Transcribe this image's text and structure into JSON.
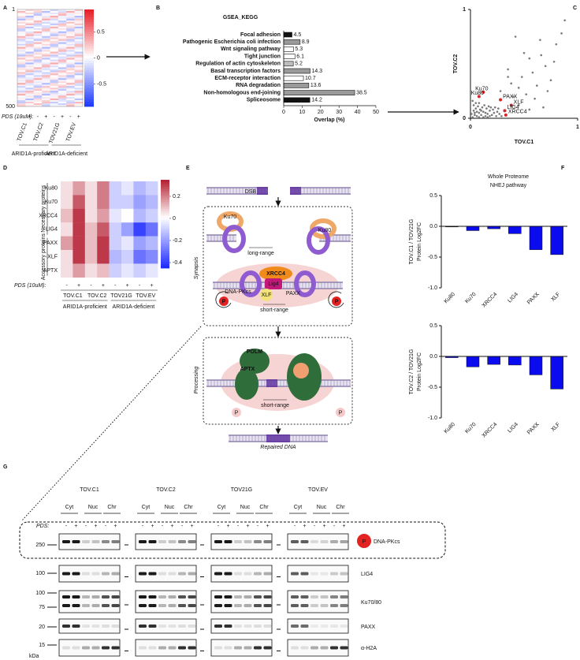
{
  "panel_labels": [
    "A",
    "B",
    "C",
    "D",
    "E",
    "F",
    "G"
  ],
  "panel_a": {
    "rows": [
      1,
      500
    ],
    "zlim": [
      -0.93,
      0.93
    ],
    "zticks": [
      0.5,
      0,
      -0.5
    ],
    "colormap": [
      "#1f3bff",
      "#ffffff",
      "#e8141e"
    ],
    "pds_label": "PDS (10uM):",
    "pds": [
      "-",
      "+"
    ],
    "lines": [
      "TOV.C1",
      "TOV.C2",
      "TOV21G",
      "TOV.EV"
    ],
    "groups": [
      "ARID1A-proficient",
      "ARID1A-deficient"
    ]
  },
  "panel_e": {
    "dsb": "DSB",
    "ku70": "Ku70",
    "ku80": "Ku80",
    "long_range": "long-range",
    "synapsis": "Synapsis",
    "xrcc4": "XRCC4",
    "lig4": "Lig4",
    "xlf": "XLF",
    "paxx": "PAXX",
    "dna_pkcs": "DNA-PKcs",
    "p": "P",
    "short_range": "short-range",
    "processing": "Processing",
    "polm": "POLM",
    "aptx": "APTX",
    "repaired": "Repaired DNA"
  },
  "panel_f_title": [
    "Whole Proteome",
    "NHEJ pathway"
  ],
  "panel_g": {
    "lines": [
      "TOV.C1",
      "TOV.C2",
      "TOV21G",
      "TOV.EV"
    ],
    "fractions": [
      "Cyt",
      "Nuc",
      "Chr"
    ],
    "pds_label": "PDS:",
    "pds": [
      "-",
      "+"
    ],
    "markers": [
      250,
      100,
      100,
      75,
      20,
      15
    ],
    "unit": "kDa",
    "phospho": "P",
    "proteins": [
      "DNA-PKcs",
      "LIG4",
      "Ku70/80",
      "PAXX",
      "α-H2A"
    ]
  },
  "chart_data": [
    {
      "type": "bar",
      "orientation": "horizontal",
      "title": "GSEA_KEGG",
      "categories": [
        "Focal adhesion",
        "Pathogenic Escherichia coli infection",
        "Wnt signaling pathway",
        "Tight junction",
        "Regulation of actin cytoskeleton",
        "Basal transcription factors",
        "ECM-receptor interaction",
        "RNA degradation",
        "Non-homologous end-joining",
        "Spliceosome"
      ],
      "values": [
        4.5,
        8.9,
        5.3,
        6.1,
        5.2,
        14.3,
        10.7,
        13.6,
        38.5,
        14.2
      ],
      "colors": [
        "#111111",
        "#9a9a9a",
        "#ffffff",
        "#ffffff",
        "#bdbdbd",
        "#9a9a9a",
        "#ffffff",
        "#9a9a9a",
        "#9a9a9a",
        "#111111"
      ],
      "xlabel": "Overlap (%)",
      "xlim": [
        0,
        50
      ],
      "xticks": [
        0,
        10,
        20,
        30,
        40,
        50
      ]
    },
    {
      "type": "scatter",
      "xlabel": "TOV.C1",
      "ylabel": "TOV.C2",
      "xlim": [
        0,
        1
      ],
      "ylim": [
        0,
        1
      ],
      "xticks": [
        0,
        1
      ],
      "yticks": [
        0,
        1
      ],
      "color": "#7a7a7a",
      "x": [
        0.02,
        0.04,
        0.06,
        0.08,
        0.1,
        0.12,
        0.14,
        0.16,
        0.18,
        0.2,
        0.22,
        0.24,
        0.03,
        0.05,
        0.07,
        0.09,
        0.11,
        0.13,
        0.15,
        0.17,
        0.01,
        0.03,
        0.05,
        0.02,
        0.08,
        0.19,
        0.21,
        0.25,
        0.27,
        0.29,
        0.23,
        0.26,
        0.04,
        0.06,
        0.1,
        0.14,
        0.18,
        0.12,
        0.08,
        0.16,
        0.42,
        0.55,
        0.65,
        0.85,
        0.8,
        0.7,
        0.58,
        0.48,
        0.62,
        0.75,
        0.45,
        0.52,
        0.38,
        0.35,
        0.28,
        0.4,
        0.6,
        0.68,
        0.45,
        0.55,
        0.35,
        0.5,
        0.66,
        0.72,
        0.78,
        0.88
      ],
      "y": [
        0.01,
        0.03,
        0.02,
        0.05,
        0.03,
        0.06,
        0.02,
        0.04,
        0.07,
        0.03,
        0.05,
        0.02,
        0.07,
        0.09,
        0.11,
        0.08,
        0.1,
        0.12,
        0.09,
        0.11,
        0.04,
        0.12,
        0.14,
        0.16,
        0.14,
        0.1,
        0.08,
        0.06,
        0.04,
        0.02,
        0.1,
        0.09,
        0.05,
        0.06,
        0.07,
        0.05,
        0.02,
        0.01,
        0.01,
        0.01,
        0.75,
        0.55,
        0.72,
        0.78,
        0.68,
        0.48,
        0.42,
        0.38,
        0.3,
        0.35,
        0.28,
        0.22,
        0.32,
        0.45,
        0.25,
        0.2,
        0.18,
        0.1,
        0.12,
        0.08,
        0.38,
        0.6,
        0.58,
        0.25,
        0.52,
        0.9
      ],
      "highlight": {
        "color": "#d62728",
        "labels": [
          "Ku70",
          "Ku80",
          "PAXX",
          "XLF",
          "LIG4",
          "XRCC4"
        ],
        "x": [
          0.12,
          0.08,
          0.28,
          0.38,
          0.32,
          0.33
        ],
        "y": [
          0.24,
          0.2,
          0.17,
          0.12,
          0.07,
          0.03
        ]
      }
    },
    {
      "type": "bar",
      "ylabel": [
        "TOV.C1 / TOV21G",
        "Protein Log2FC"
      ],
      "categories": [
        "Ku80",
        "Ku70",
        "XRCC4",
        "LIG4",
        "PAXX",
        "XLF"
      ],
      "values": [
        0.0,
        -0.07,
        -0.04,
        -0.12,
        -0.38,
        -0.46
      ],
      "color": "#0b0bef",
      "ylim": [
        -1,
        0.5
      ],
      "yticks": [
        {
          "value": -1,
          "label": "-1.0"
        },
        -0.5,
        {
          "value": 0,
          "label": "0.0"
        },
        0.5
      ]
    },
    {
      "type": "bar",
      "ylabel": [
        "TOV.C2 / TOV21G",
        "Protein Log2FC"
      ],
      "categories": [
        "Ku80",
        "Ku70",
        "XRCC4",
        "LIG4",
        "PAXX",
        "XLF"
      ],
      "values": [
        -0.02,
        -0.17,
        -0.13,
        -0.14,
        -0.3,
        -0.53
      ],
      "color": "#0b0bef",
      "ylim": [
        -1,
        0.5
      ],
      "yticks": [
        {
          "value": -1,
          "label": "-1.0"
        },
        -0.5,
        {
          "value": 0,
          "label": "0.0"
        },
        0.5
      ]
    },
    {
      "type": "heatmap",
      "rows": [
        "Ku80",
        "Ku70",
        "XRCC4",
        "LIG4",
        "PAXX",
        "XLF",
        "APTX"
      ],
      "row_groups": [
        "Necessary proteins",
        "Accessory proteins"
      ],
      "lines": [
        "TOV.C1",
        "TOV.C2",
        "TOV21G",
        "TOV.EV"
      ],
      "pds_label": "PDS (10uM):",
      "pds": [
        "-",
        "+"
      ],
      "groups": [
        "ARID1A-proficient",
        "ARID1A-deficient"
      ],
      "values": [
        [
          0.05,
          0.15,
          0.05,
          0.2,
          -0.1,
          -0.05,
          -0.15,
          -0.1
        ],
        [
          0.05,
          0.25,
          0.05,
          0.2,
          -0.1,
          -0.1,
          -0.2,
          -0.15
        ],
        [
          0.1,
          0.3,
          0.05,
          0.15,
          -0.05,
          0,
          -0.15,
          -0.1
        ],
        [
          0.05,
          0.3,
          0.1,
          0.25,
          -0.1,
          -0.2,
          -0.4,
          -0.3
        ],
        [
          0.15,
          0.3,
          0.1,
          0.3,
          -0.1,
          -0.05,
          -0.2,
          -0.15
        ],
        [
          0.05,
          0.3,
          0.1,
          0.3,
          -0.15,
          -0.1,
          -0.3,
          -0.25
        ],
        [
          0.05,
          0.15,
          0.05,
          0.1,
          -0.1,
          -0.05,
          -0.1,
          -0.05
        ]
      ],
      "zlim": [
        -0.45,
        0.35
      ],
      "zticks": [
        0.2,
        0,
        -0.2,
        -0.4
      ],
      "colormap": [
        "#1f2bff",
        "#ffffff",
        "#b2182b"
      ]
    }
  ]
}
